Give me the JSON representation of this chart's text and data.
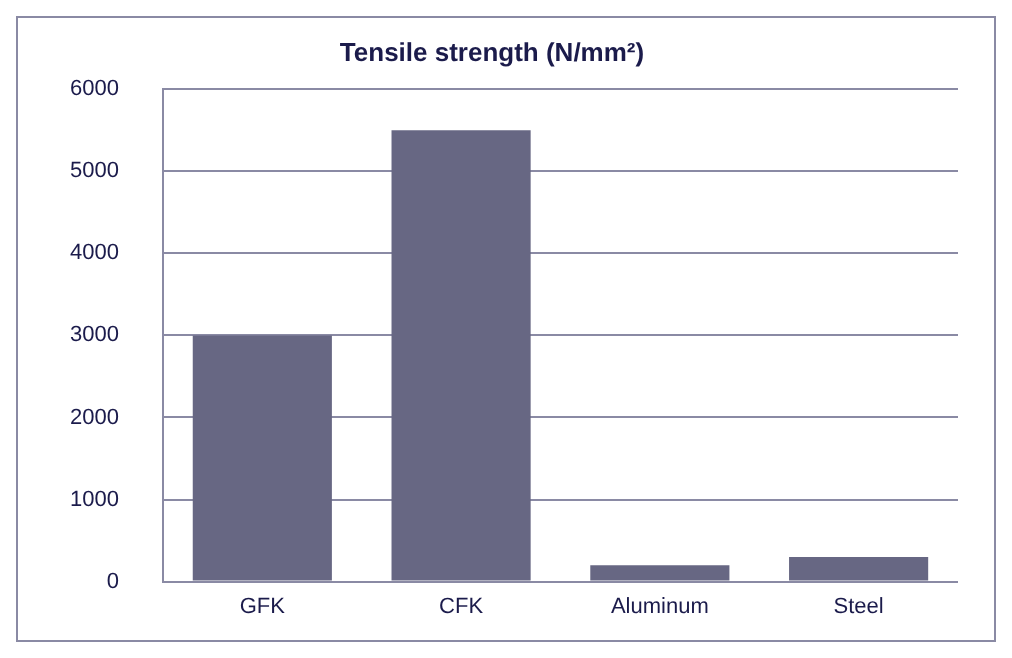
{
  "chart_data": {
    "type": "bar",
    "title": "Tensile strength (N/mm²)",
    "categories": [
      "GFK",
      "CFK",
      "Aluminum",
      "Steel"
    ],
    "values": [
      3000,
      5500,
      200,
      300
    ],
    "color": "#676783",
    "ylim": [
      0,
      6000
    ],
    "yticks": [
      0,
      1000,
      2000,
      3000,
      4000,
      5000,
      6000
    ],
    "grid": "y",
    "legend": false
  }
}
